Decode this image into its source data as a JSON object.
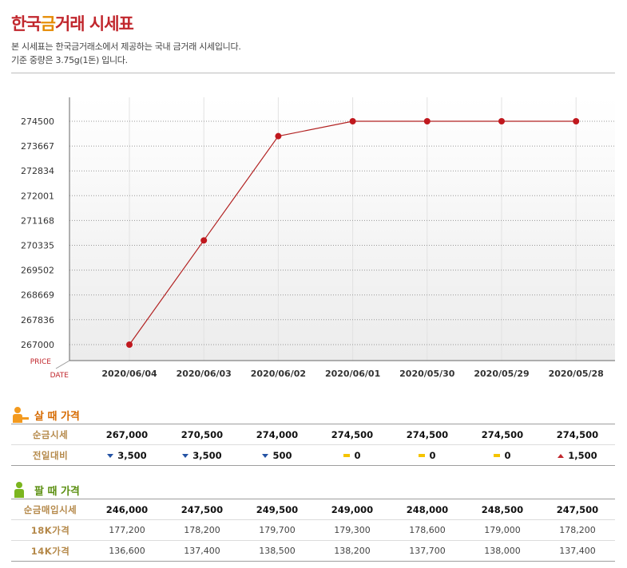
{
  "header": {
    "title_part1": "한국",
    "title_accent": "금",
    "title_part2": "거래 시세표",
    "desc_line1": "본 시세표는 한국금거래소에서 제공하는 국내 금거래 시세입니다.",
    "desc_line2": "기준 중량은 3.75g(1돈) 입니다."
  },
  "colors": {
    "line": "#b22222",
    "marker": "#c0181e",
    "grid": "#999999",
    "axis_label": "#c1272d"
  },
  "chart_data": {
    "type": "line",
    "categories": [
      "2020/06/04",
      "2020/06/03",
      "2020/06/02",
      "2020/06/01",
      "2020/05/30",
      "2020/05/29",
      "2020/05/28"
    ],
    "series": [
      {
        "values": [
          267000,
          270500,
          274000,
          274500,
          274500,
          274500,
          274500
        ]
      }
    ],
    "y_ticks": [
      274500,
      273667,
      272834,
      272001,
      271168,
      270335,
      269502,
      268669,
      267836,
      267000
    ],
    "ylim": [
      267000,
      274500
    ],
    "ylabel": "PRICE",
    "xlabel": "DATE",
    "grid": true
  },
  "buy": {
    "heading": "살 때 가격",
    "rows": [
      {
        "label": "순금시세",
        "cells": [
          "267,000",
          "270,500",
          "274,000",
          "274,500",
          "274,500",
          "274,500",
          "274,500"
        ]
      },
      {
        "label": "전일대비",
        "cells": [
          {
            "dir": "down",
            "value": "3,500"
          },
          {
            "dir": "down",
            "value": "3,500"
          },
          {
            "dir": "down",
            "value": "500"
          },
          {
            "dir": "flat",
            "value": "0"
          },
          {
            "dir": "flat",
            "value": "0"
          },
          {
            "dir": "flat",
            "value": "0"
          },
          {
            "dir": "up",
            "value": "1,500"
          }
        ]
      }
    ]
  },
  "sell": {
    "heading": "팔 때 가격",
    "rows": [
      {
        "label": "순금매입시세",
        "cells": [
          "246,000",
          "247,500",
          "249,500",
          "249,000",
          "248,000",
          "248,500",
          "247,500"
        ]
      },
      {
        "label": "18K가격",
        "cells": [
          "177,200",
          "178,200",
          "179,700",
          "179,300",
          "178,600",
          "179,000",
          "178,200"
        ]
      },
      {
        "label": "14K가격",
        "cells": [
          "136,600",
          "137,400",
          "138,500",
          "138,200",
          "137,700",
          "138,000",
          "137,400"
        ]
      }
    ]
  }
}
